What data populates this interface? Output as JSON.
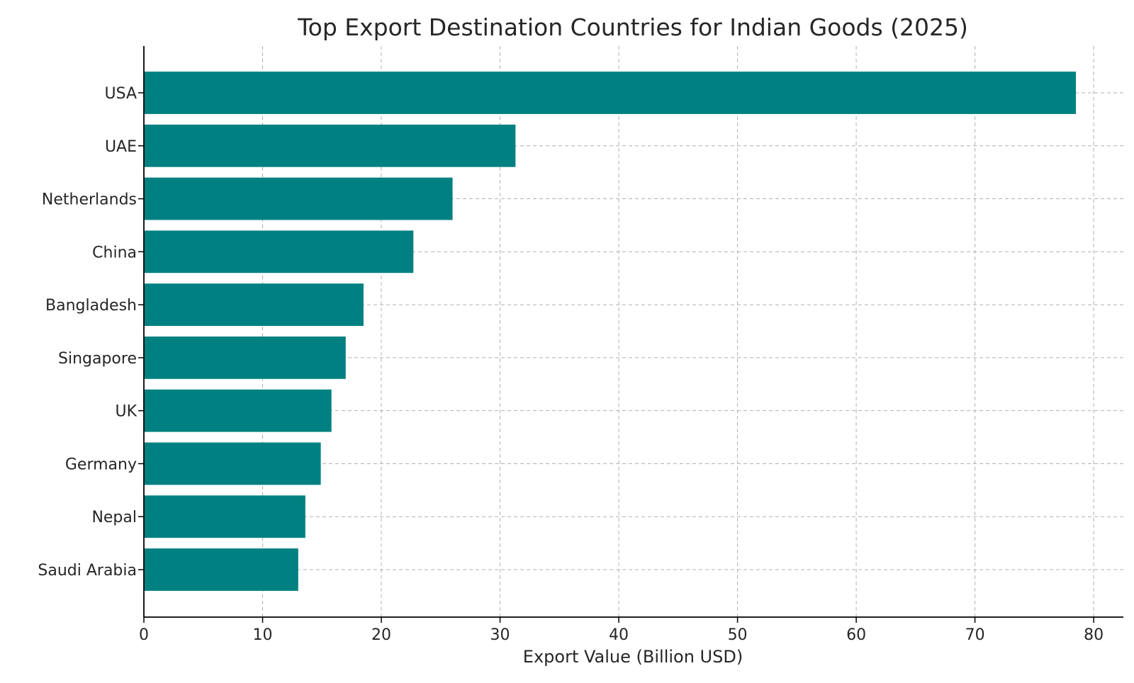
{
  "chart_data": {
    "type": "bar",
    "orientation": "horizontal",
    "title": "Top Export Destination Countries for Indian Goods (2025)",
    "xlabel": "Export Value (Billion USD)",
    "ylabel": "",
    "categories": [
      "USA",
      "UAE",
      "Netherlands",
      "China",
      "Bangladesh",
      "Singapore",
      "UK",
      "Germany",
      "Nepal",
      "Saudi Arabia"
    ],
    "values": [
      78.5,
      31.3,
      26.0,
      22.7,
      18.5,
      17.0,
      15.8,
      14.9,
      13.6,
      13.0
    ],
    "xlim": [
      0,
      82.5
    ],
    "xticks": [
      0,
      10,
      20,
      30,
      40,
      50,
      60,
      70,
      80
    ],
    "grid": true,
    "bar_color": "#008080",
    "grid_color": "#b0b0b0",
    "axis_color": "#000000",
    "text_color": "#262626"
  }
}
